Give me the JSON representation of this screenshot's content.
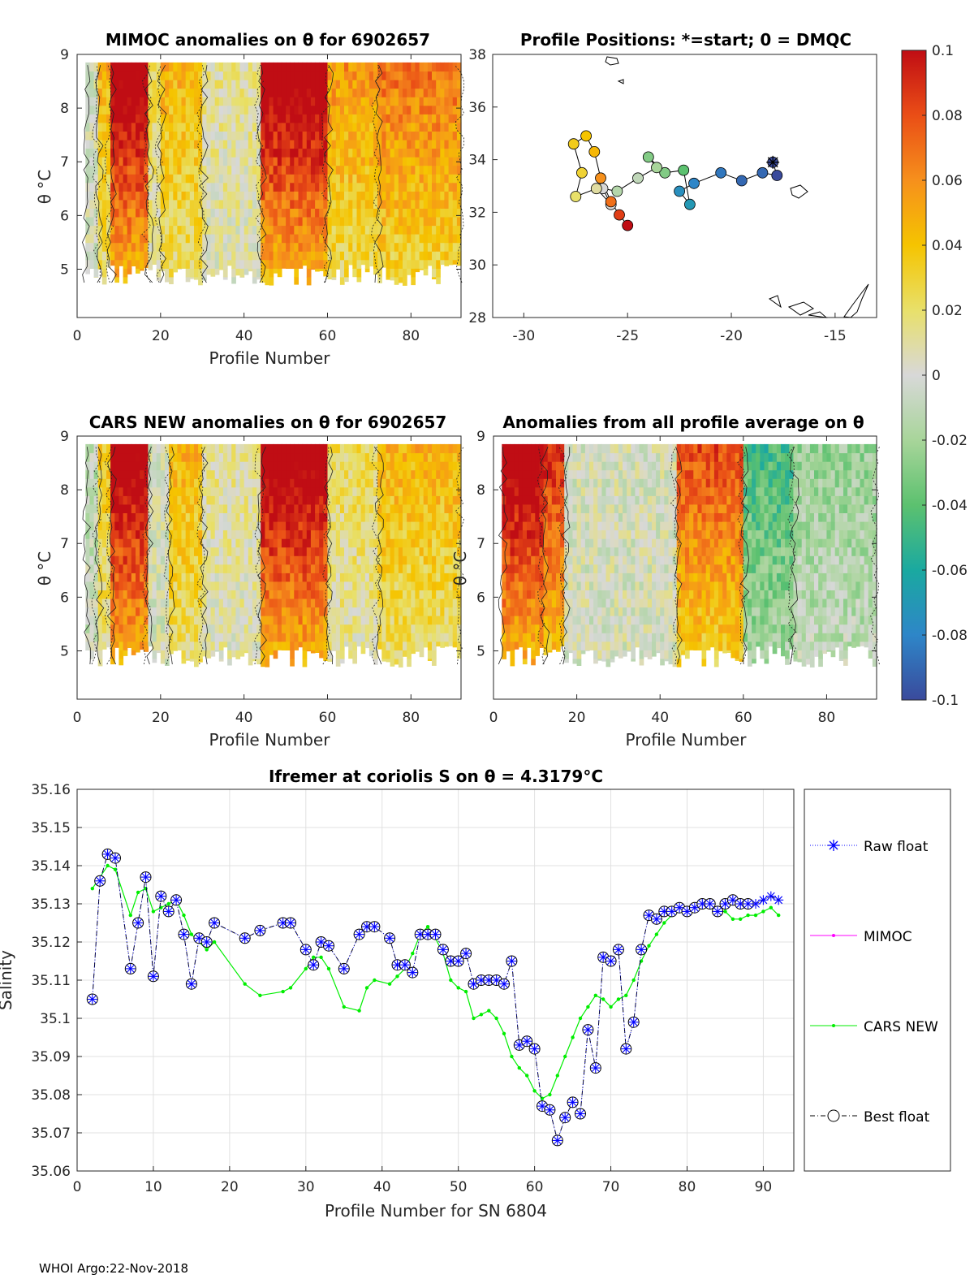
{
  "footer": "WHOI Argo:22-Nov-2018",
  "chart_data": [
    {
      "type": "heatmap",
      "title": "MIMOC anomalies on θ  for 6902657",
      "xlabel": "Profile Number",
      "ylabel": "θ °C",
      "xlim": [
        0,
        92
      ],
      "ylim": [
        4.1,
        9.0
      ],
      "xticks": [
        0,
        20,
        40,
        60,
        80
      ],
      "yticks": [
        5,
        6,
        7,
        8,
        9
      ],
      "bands": [
        {
          "x": [
            2,
            5
          ],
          "value": 0.0
        },
        {
          "x": [
            5,
            8
          ],
          "value": 0.04
        },
        {
          "x": [
            8,
            17
          ],
          "value": 0.1
        },
        {
          "x": [
            17,
            20
          ],
          "value": 0.02
        },
        {
          "x": [
            20,
            30
          ],
          "value": 0.04
        },
        {
          "x": [
            30,
            44
          ],
          "value": 0.01
        },
        {
          "x": [
            44,
            60
          ],
          "value": 0.1
        },
        {
          "x": [
            60,
            72
          ],
          "value": 0.05
        },
        {
          "x": [
            72,
            92
          ],
          "value": 0.06
        }
      ]
    },
    {
      "type": "scatter",
      "title": "Profile Positions: *=start; 0 = DMQC",
      "xlim": [
        -31.5,
        -13
      ],
      "ylim": [
        28,
        38
      ],
      "xticks": [
        -30,
        -25,
        -20,
        -15
      ],
      "yticks": [
        28,
        30,
        32,
        34,
        36,
        38
      ],
      "lon": [
        -18,
        -17.8,
        -18.5,
        -19.5,
        -20.5,
        -21.8,
        -22.5,
        -22.0,
        -22.3,
        -23.2,
        -24.0,
        -23.6,
        -24.5,
        -25.5,
        -26.2,
        -25.8,
        -26.5,
        -27.5,
        -27.2,
        -27.6,
        -27.0,
        -26.6,
        -26.3,
        -25.8,
        -25.4,
        -25.0
      ],
      "lat": [
        33.9,
        33.4,
        33.5,
        33.2,
        33.5,
        33.1,
        32.8,
        32.3,
        33.6,
        33.5,
        34.1,
        33.7,
        33.3,
        32.8,
        32.9,
        32.3,
        32.9,
        32.6,
        33.5,
        34.6,
        34.9,
        34.3,
        33.3,
        32.4,
        31.9,
        31.5
      ],
      "anomaly": [
        -0.1,
        -0.1,
        -0.09,
        -0.09,
        -0.085,
        -0.08,
        -0.075,
        -0.07,
        -0.04,
        -0.03,
        -0.03,
        -0.02,
        -0.01,
        -0.015,
        0.0,
        0.0,
        0.01,
        0.02,
        0.03,
        0.035,
        0.04,
        0.045,
        0.06,
        0.07,
        0.085,
        0.1
      ]
    },
    {
      "type": "heatmap",
      "title": "CARS NEW anomalies on θ for 6902657",
      "xlabel": "Profile Number",
      "ylabel": "θ °C",
      "xlim": [
        0,
        92
      ],
      "ylim": [
        4.1,
        9.0
      ],
      "xticks": [
        0,
        20,
        40,
        60,
        80
      ],
      "yticks": [
        5,
        6,
        7,
        8,
        9
      ],
      "bands": [
        {
          "x": [
            2,
            5
          ],
          "value": -0.01
        },
        {
          "x": [
            5,
            8
          ],
          "value": 0.03
        },
        {
          "x": [
            8,
            17
          ],
          "value": 0.1
        },
        {
          "x": [
            17,
            22
          ],
          "value": 0.0
        },
        {
          "x": [
            22,
            30
          ],
          "value": 0.04
        },
        {
          "x": [
            30,
            44
          ],
          "value": 0.01
        },
        {
          "x": [
            44,
            60
          ],
          "value": 0.1
        },
        {
          "x": [
            60,
            72
          ],
          "value": 0.02
        },
        {
          "x": [
            72,
            92
          ],
          "value": 0.04
        }
      ]
    },
    {
      "type": "heatmap",
      "title": "Anomalies from all profile average on θ",
      "xlabel": "Profile Number",
      "ylabel": "θ °C",
      "xlim": [
        0,
        92
      ],
      "ylim": [
        4.1,
        9.0
      ],
      "xticks": [
        0,
        20,
        40,
        60,
        80
      ],
      "yticks": [
        5,
        6,
        7,
        8,
        9
      ],
      "bands": [
        {
          "x": [
            2,
            12
          ],
          "value": 0.1
        },
        {
          "x": [
            12,
            17
          ],
          "value": 0.08
        },
        {
          "x": [
            17,
            44
          ],
          "value": 0.0
        },
        {
          "x": [
            44,
            60
          ],
          "value": 0.07
        },
        {
          "x": [
            60,
            72
          ],
          "value": -0.04
        },
        {
          "x": [
            72,
            92
          ],
          "value": -0.02
        }
      ]
    },
    {
      "type": "line",
      "title": "Ifremer at coriolis S on θ = 4.3179°C",
      "xlabel": "Profile Number for SN 6804",
      "ylabel": "Salinity",
      "xlim": [
        0,
        94
      ],
      "ylim": [
        35.06,
        35.16
      ],
      "xticks": [
        0,
        10,
        20,
        30,
        40,
        50,
        60,
        70,
        80,
        90
      ],
      "yticks": [
        35.06,
        35.07,
        35.08,
        35.09,
        35.1,
        35.11,
        35.12,
        35.13,
        35.14,
        35.15,
        35.16
      ],
      "legend": [
        "Raw float",
        "MIMOC",
        "CARS NEW",
        "Best float"
      ],
      "series": [
        {
          "name": "Raw float",
          "x": [
            2,
            3,
            4,
            5,
            7,
            8,
            9,
            10,
            11,
            12,
            13,
            14,
            15,
            16,
            17,
            18,
            22,
            24,
            27,
            28,
            30,
            31,
            32,
            33,
            35,
            37,
            38,
            39,
            41,
            42,
            43,
            44,
            45,
            46,
            47,
            48,
            49,
            50,
            51,
            52,
            53,
            54,
            55,
            56,
            57,
            58,
            59,
            60,
            61,
            62,
            63,
            64,
            65,
            66,
            67,
            68,
            69,
            70,
            71,
            72,
            73,
            74,
            75,
            76,
            77,
            78,
            79,
            80,
            81,
            82,
            83,
            84,
            85,
            86,
            87,
            88,
            89,
            90,
            91,
            92
          ],
          "y": [
            35.105,
            35.136,
            35.143,
            35.142,
            35.113,
            35.125,
            35.137,
            35.111,
            35.132,
            35.128,
            35.131,
            35.122,
            35.109,
            35.121,
            35.12,
            35.125,
            35.121,
            35.123,
            35.125,
            35.125,
            35.118,
            35.114,
            35.12,
            35.119,
            35.113,
            35.122,
            35.124,
            35.124,
            35.121,
            35.114,
            35.114,
            35.112,
            35.122,
            35.122,
            35.122,
            35.118,
            35.115,
            35.115,
            35.117,
            35.109,
            35.11,
            35.11,
            35.11,
            35.109,
            35.115,
            35.093,
            35.094,
            35.092,
            35.077,
            35.076,
            35.068,
            35.074,
            35.078,
            35.075,
            35.097,
            35.087,
            35.116,
            35.115,
            35.118,
            35.092,
            35.099,
            35.118,
            35.127,
            35.126,
            35.128,
            35.128,
            35.129,
            35.128,
            35.129,
            35.13,
            35.13,
            35.128,
            35.13,
            35.131,
            35.13,
            35.13,
            35.13,
            35.131,
            35.132,
            35.131
          ]
        },
        {
          "name": "MIMOC",
          "x": [],
          "y": []
        },
        {
          "name": "CARS NEW",
          "x": [
            2,
            3,
            4,
            5,
            7,
            8,
            9,
            10,
            11,
            12,
            13,
            14,
            15,
            16,
            17,
            18,
            22,
            24,
            27,
            28,
            30,
            31,
            32,
            33,
            35,
            37,
            38,
            39,
            41,
            42,
            43,
            44,
            45,
            46,
            47,
            48,
            49,
            50,
            51,
            52,
            53,
            54,
            55,
            56,
            57,
            58,
            59,
            60,
            61,
            62,
            63,
            64,
            65,
            66,
            67,
            68,
            69,
            70,
            71,
            72,
            73,
            74,
            75,
            76,
            77,
            78,
            79,
            80,
            81,
            82,
            83,
            84,
            85,
            86,
            87,
            88,
            89,
            90,
            91,
            92
          ],
          "y": [
            35.134,
            35.137,
            35.14,
            35.139,
            35.127,
            35.133,
            35.134,
            35.128,
            35.129,
            35.13,
            35.131,
            35.127,
            35.122,
            35.12,
            35.118,
            35.12,
            35.109,
            35.106,
            35.107,
            35.108,
            35.113,
            35.116,
            35.116,
            35.113,
            35.103,
            35.102,
            35.108,
            35.11,
            35.109,
            35.111,
            35.113,
            35.117,
            35.122,
            35.124,
            35.121,
            35.117,
            35.11,
            35.108,
            35.107,
            35.1,
            35.101,
            35.102,
            35.1,
            35.096,
            35.09,
            35.087,
            35.085,
            35.081,
            35.079,
            35.08,
            35.085,
            35.09,
            35.095,
            35.1,
            35.103,
            35.106,
            35.105,
            35.103,
            35.105,
            35.106,
            35.11,
            35.115,
            35.119,
            35.122,
            35.125,
            35.127,
            35.128,
            35.128,
            35.129,
            35.129,
            35.129,
            35.128,
            35.128,
            35.126,
            35.126,
            35.127,
            35.127,
            35.128,
            35.129,
            35.127
          ]
        },
        {
          "name": "Best float",
          "same_as": "Raw float"
        }
      ]
    }
  ],
  "colorbar": {
    "min": -0.1,
    "max": 0.1,
    "tick_labels": [
      "0.1",
      "0.08",
      "0.06",
      "0.04",
      "0.02",
      "0",
      "-0.02",
      "-0.04",
      "-0.06",
      "-0.08",
      "-0.1"
    ],
    "stops": [
      "#3a4a9c",
      "#2e86c8",
      "#1aa9a0",
      "#5cc16f",
      "#a8d59a",
      "#d8d8d8",
      "#e8e06a",
      "#f5c400",
      "#f6901c",
      "#ea4e16",
      "#c00d14"
    ]
  },
  "colors": {
    "raw": "#0000ff",
    "mimoc": "#ff00ff",
    "cars": "#00ee00",
    "best": "#000000",
    "grid": "#e0e0e0"
  }
}
